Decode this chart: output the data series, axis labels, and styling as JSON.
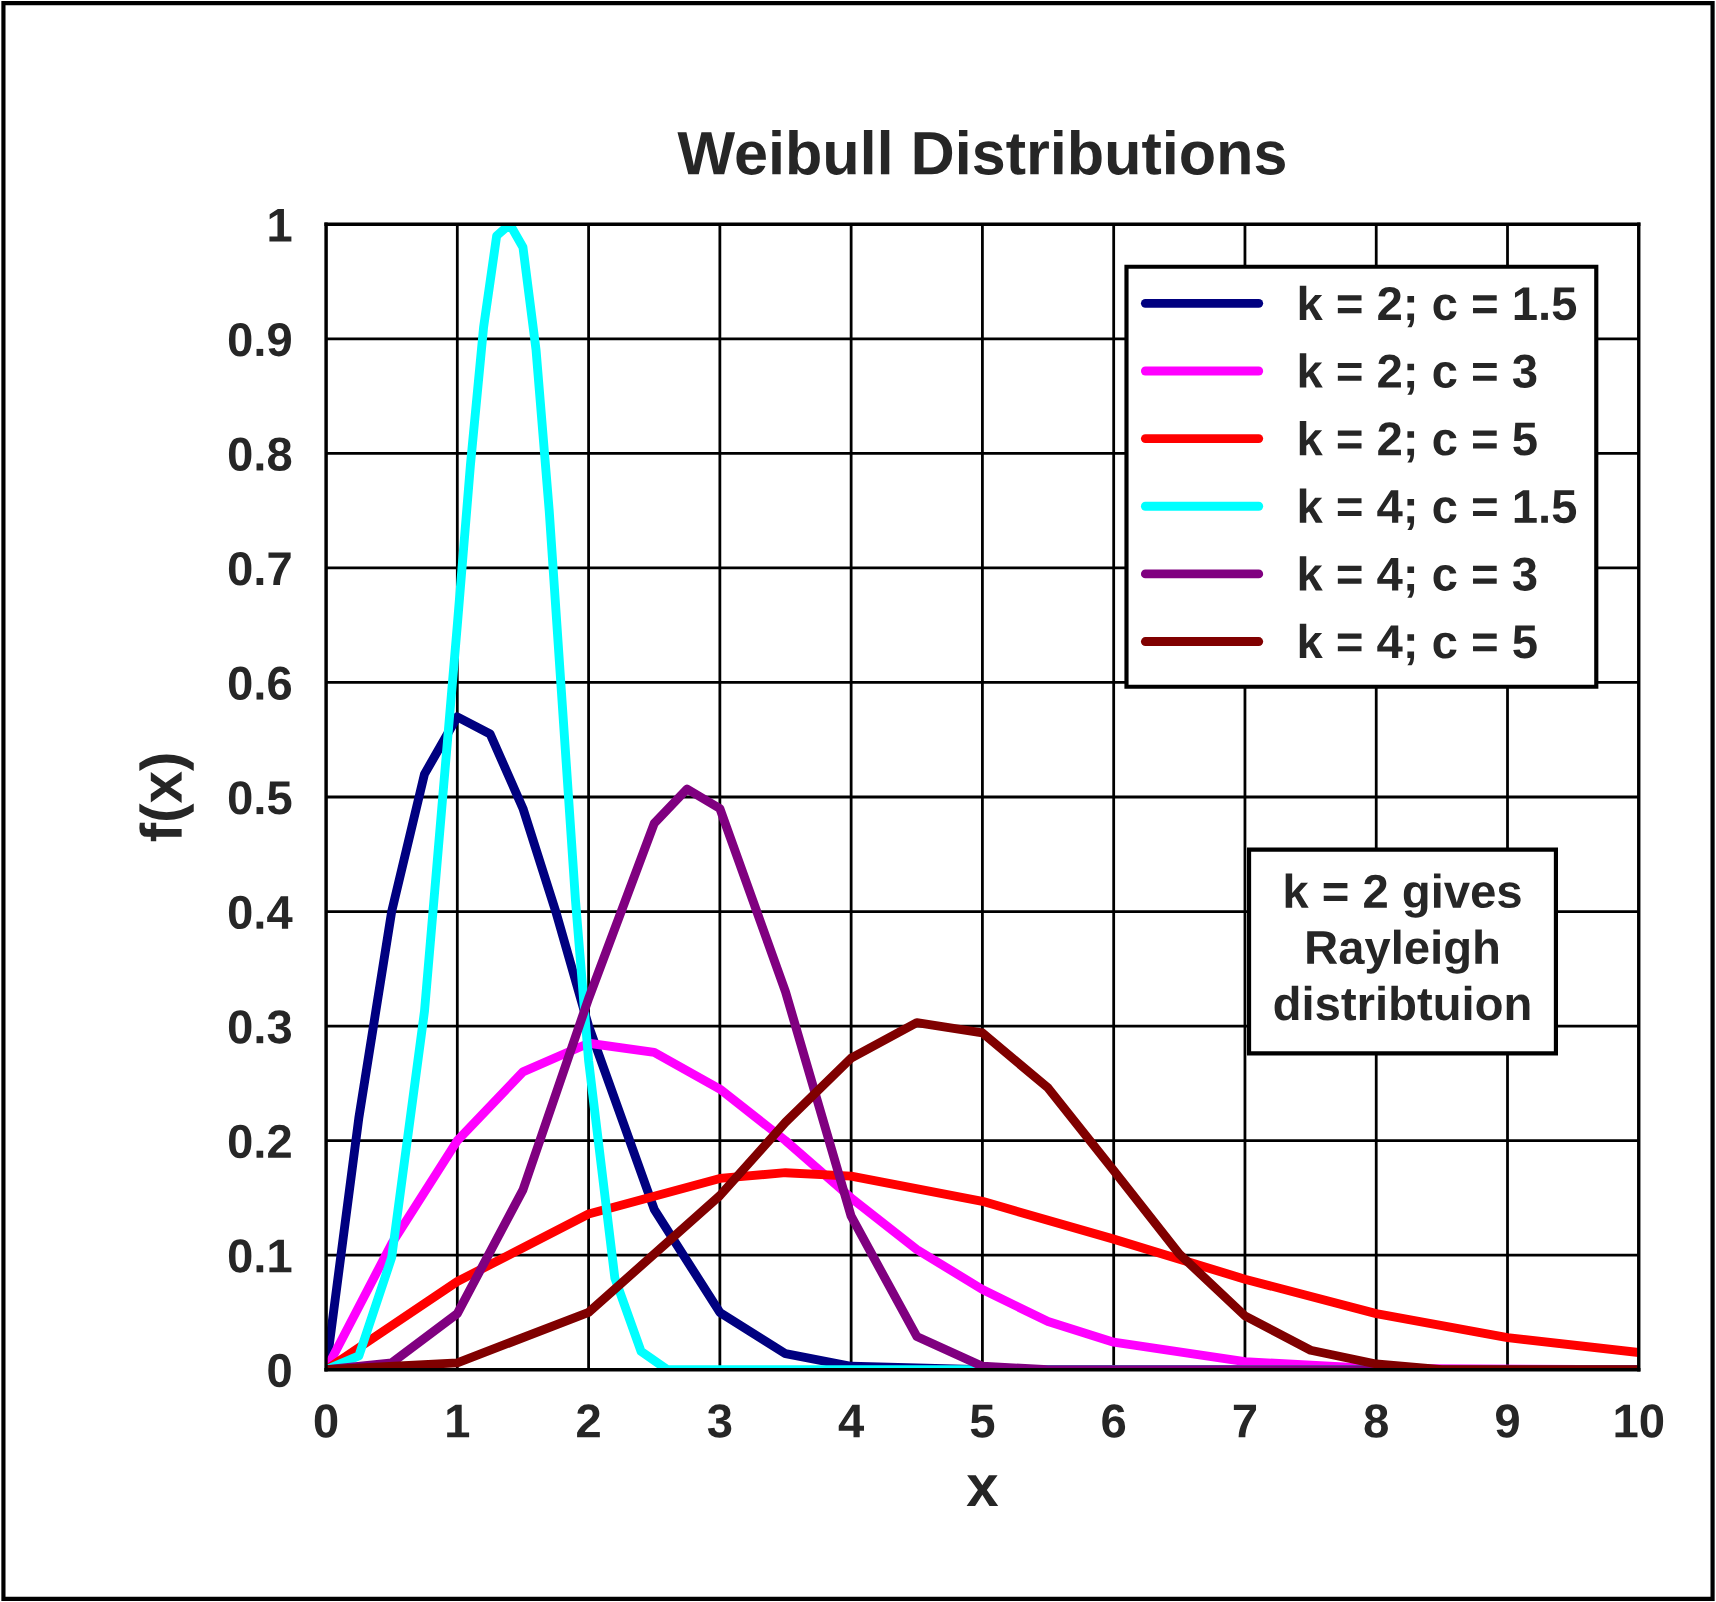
{
  "chart_data": {
    "type": "line",
    "title": "Weibull Distributions",
    "xlabel": "x",
    "ylabel": "f(x)",
    "xlim": [
      0,
      10
    ],
    "ylim": [
      0,
      1
    ],
    "xticks": [
      0,
      1,
      2,
      3,
      4,
      5,
      6,
      7,
      8,
      9,
      10
    ],
    "yticks": [
      0,
      0.1,
      0.2,
      0.3,
      0.4,
      0.5,
      0.6,
      0.7,
      0.8,
      0.9,
      1
    ],
    "grid": true,
    "legend": "top right",
    "marker": "none",
    "line_style": "solid",
    "series": [
      {
        "name": "k = 2; c = 1.5",
        "color": "#000080",
        "x": [
          0,
          0.25,
          0.5,
          0.75,
          1,
          1.25,
          1.5,
          1.75,
          2,
          2.5,
          3,
          3.5,
          4,
          5,
          10
        ],
        "values": [
          0,
          0.22,
          0.4,
          0.52,
          0.57,
          0.555,
          0.49,
          0.4,
          0.3,
          0.14,
          0.05,
          0.014,
          0.003,
          0,
          0
        ]
      },
      {
        "name": "k = 2; c = 3",
        "color": "#ff00ff",
        "x": [
          0,
          0.5,
          1,
          1.5,
          2,
          2.5,
          3,
          3.5,
          4,
          4.5,
          5,
          5.5,
          6,
          7,
          8,
          10
        ],
        "values": [
          0,
          0.11,
          0.2,
          0.26,
          0.285,
          0.277,
          0.245,
          0.2,
          0.15,
          0.105,
          0.07,
          0.042,
          0.024,
          0.007,
          0.001,
          0
        ]
      },
      {
        "name": "k = 2; c = 5",
        "color": "#ff0000",
        "x": [
          0,
          1,
          2,
          3,
          3.5,
          4,
          5,
          6,
          7,
          8,
          9,
          10
        ],
        "values": [
          0,
          0.077,
          0.136,
          0.167,
          0.172,
          0.169,
          0.147,
          0.114,
          0.079,
          0.049,
          0.028,
          0.015
        ]
      },
      {
        "name": "k = 4; c = 1.5",
        "color": "#00ffff",
        "x": [
          0,
          0.25,
          0.5,
          0.75,
          1,
          1.1,
          1.2,
          1.3,
          1.4,
          1.5,
          1.6,
          1.7,
          1.8,
          1.9,
          2,
          2.2,
          2.4,
          2.6,
          10
        ],
        "values": [
          0,
          0.012,
          0.098,
          0.313,
          0.65,
          0.79,
          0.91,
          0.99,
          1.0,
          0.98,
          0.89,
          0.75,
          0.58,
          0.41,
          0.27,
          0.08,
          0.016,
          0,
          0
        ]
      },
      {
        "name": "k = 4; c = 3",
        "color": "#800080",
        "x": [
          0,
          0.5,
          1,
          1.5,
          2,
          2.5,
          2.75,
          3,
          3.5,
          4,
          4.5,
          5,
          5.5,
          10
        ],
        "values": [
          0,
          0.006,
          0.049,
          0.157,
          0.324,
          0.477,
          0.507,
          0.49,
          0.33,
          0.134,
          0.029,
          0.003,
          0,
          0
        ]
      },
      {
        "name": "k = 4; c = 5",
        "color": "#800000",
        "x": [
          0,
          1,
          2,
          3,
          3.5,
          4,
          4.5,
          5,
          5.5,
          6,
          6.5,
          7,
          7.5,
          8,
          8.5,
          10
        ],
        "values": [
          0,
          0.006,
          0.05,
          0.152,
          0.216,
          0.272,
          0.303,
          0.294,
          0.246,
          0.174,
          0.101,
          0.047,
          0.017,
          0.005,
          0,
          0
        ]
      }
    ],
    "annotations": [
      "k = 2 gives\nRayleigh\ndistribtuion"
    ]
  }
}
